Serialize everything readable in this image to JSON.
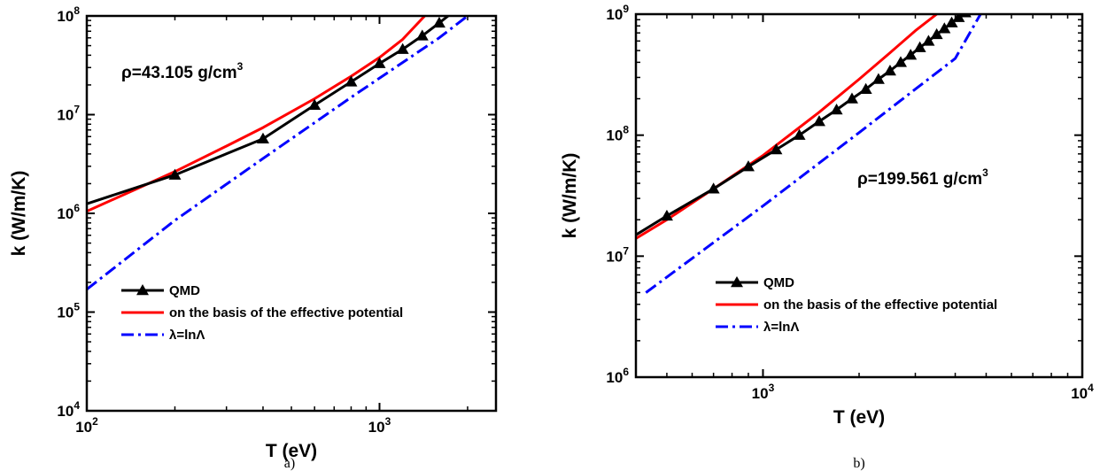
{
  "chart_data": [
    {
      "type": "line",
      "panel_label": "a)",
      "xlabel": "T (eV)",
      "ylabel": "k (W/m/K)",
      "xscale": "log",
      "yscale": "log",
      "xlim": [
        100,
        2500
      ],
      "ylim": [
        10000,
        100000000
      ],
      "xticks": [
        {
          "value": 100,
          "base": "10",
          "exp": "2"
        },
        {
          "value": 1000,
          "base": "10",
          "exp": "3"
        }
      ],
      "yticks": [
        {
          "value": 10000,
          "base": "10",
          "exp": "4"
        },
        {
          "value": 100000,
          "base": "10",
          "exp": "5"
        },
        {
          "value": 1000000,
          "base": "10",
          "exp": "6"
        },
        {
          "value": 10000000,
          "base": "10",
          "exp": "7"
        },
        {
          "value": 100000000,
          "base": "10",
          "exp": "8"
        }
      ],
      "annotation": {
        "prefix": "ρ=43.105 g/cm",
        "sup": "3"
      },
      "legend_position": "lower-left",
      "series": [
        {
          "name": "QMD",
          "color": "#000000",
          "style": "solid-triangle",
          "x": [
            100,
            200,
            400,
            600,
            800,
            1000,
            1200,
            1400,
            1600,
            1800
          ],
          "y": [
            1250000,
            2450000,
            5700000,
            12500000,
            21500000,
            33000000,
            46000000,
            63000000,
            85000000,
            112000000
          ],
          "markers": [
            200,
            400,
            600,
            800,
            1000,
            1200,
            1400,
            1600
          ]
        },
        {
          "name": "on the basis of the effective potential",
          "color": "#ff0000",
          "style": "solid",
          "x": [
            100,
            150,
            200,
            300,
            400,
            600,
            800,
            1000,
            1200,
            1450
          ],
          "y": [
            1050000,
            1800000,
            2650000,
            4800000,
            7400000,
            14500000,
            24500000,
            38000000,
            58000000,
            105000000
          ]
        },
        {
          "name": "λ=lnΛ",
          "color": "#0000ff",
          "style": "dashdot",
          "x": [
            100,
            200,
            400,
            800,
            1600,
            2000
          ],
          "y": [
            170000,
            850000,
            3600000,
            15000000,
            60000000,
            100000000
          ]
        }
      ]
    },
    {
      "type": "line",
      "panel_label": "b)",
      "xlabel": "T (eV)",
      "ylabel": "k (W/m/K)",
      "xscale": "log",
      "yscale": "log",
      "xlim": [
        400,
        10000
      ],
      "ylim": [
        1000000,
        1000000000
      ],
      "xticks": [
        {
          "value": 1000,
          "base": "10",
          "exp": "3"
        },
        {
          "value": 10000,
          "base": "10",
          "exp": "4"
        }
      ],
      "yticks": [
        {
          "value": 1000000,
          "base": "10",
          "exp": "6"
        },
        {
          "value": 10000000,
          "base": "10",
          "exp": "7"
        },
        {
          "value": 100000000,
          "base": "10",
          "exp": "8"
        },
        {
          "value": 1000000000,
          "base": "10",
          "exp": "9"
        }
      ],
      "annotation": {
        "prefix": "ρ=199.561 g/cm",
        "sup": "3"
      },
      "legend_position": "lower-left",
      "series": [
        {
          "name": "QMD",
          "color": "#000000",
          "style": "solid-triangle",
          "x": [
            400,
            500,
            700,
            900,
            1100,
            1300,
            1500,
            1700,
            1900,
            2100,
            2300,
            2500,
            2700,
            2900,
            3100,
            3300,
            3500,
            3700,
            3900,
            4100,
            4300
          ],
          "y": [
            15000000,
            21500000,
            36000000,
            55000000,
            76000000,
            100000000,
            130000000,
            162000000,
            200000000,
            240000000,
            290000000,
            340000000,
            400000000,
            460000000,
            530000000,
            600000000,
            680000000,
            760000000,
            850000000,
            940000000,
            1030000000
          ],
          "markers": [
            500,
            700,
            900,
            1100,
            1300,
            1500,
            1700,
            1900,
            2100,
            2300,
            2500,
            2700,
            2900,
            3100,
            3300,
            3500,
            3700,
            3900,
            4100,
            4300
          ]
        },
        {
          "name": "on the basis of the effective potential",
          "color": "#ff0000",
          "style": "solid",
          "x": [
            400,
            500,
            700,
            1000,
            1500,
            2000,
            2500,
            3000,
            3500
          ],
          "y": [
            14000000,
            20000000,
            36000000,
            68000000,
            155000000,
            290000000,
            480000000,
            730000000,
            1000000000
          ]
        },
        {
          "name": "λ=lnΛ",
          "color": "#0000ff",
          "style": "dashdot",
          "x": [
            430,
            1000,
            2000,
            3000,
            4000,
            4800
          ],
          "y": [
            5000000,
            26000000,
            105000000,
            240000000,
            430000000,
            1000000000
          ]
        }
      ]
    }
  ]
}
